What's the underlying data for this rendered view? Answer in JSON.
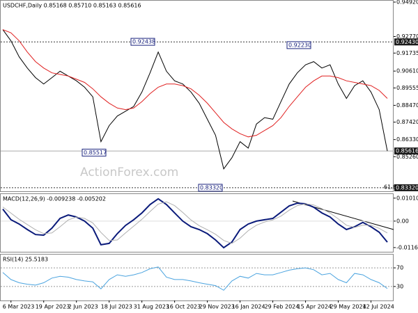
{
  "chart_data": [
    {
      "type": "line",
      "title": "USDCHF,Daily  0.85168 0.85710 0.85163 0.85616",
      "watermark": "ActionForex.com",
      "categories": [
        null,
        "6 Mar 2023",
        null,
        null,
        null,
        "19 Apr 2023",
        null,
        null,
        null,
        "2 Jun 2023",
        null,
        null,
        null,
        "18 Jul 2023",
        null,
        null,
        null,
        "31 Aug 2023",
        null,
        null,
        null,
        "16 Oct 2023",
        null,
        null,
        null,
        "29 Nov 2023",
        null,
        null,
        null,
        "16 Jan 2024",
        null,
        null,
        null,
        "29 Feb 2024",
        null,
        null,
        null,
        "15 Apr 2024",
        null,
        null,
        null,
        "29 May 2024",
        null,
        null,
        null,
        "12 Jul 2024",
        null,
        null
      ],
      "series": [
        {
          "color": "#000000",
          "width": 1,
          "values": [
            0.932,
            0.925,
            0.915,
            0.908,
            0.902,
            0.898,
            0.902,
            0.906,
            0.903,
            0.9,
            0.896,
            0.89,
            0.862,
            0.872,
            0.878,
            0.881,
            0.884,
            0.893,
            0.905,
            0.918,
            0.906,
            0.9,
            0.898,
            0.893,
            0.886,
            0.876,
            0.866,
            0.845,
            0.852,
            0.862,
            0.858,
            0.873,
            0.877,
            0.876,
            0.887,
            0.898,
            0.905,
            0.91,
            0.912,
            0.908,
            0.91,
            0.898,
            0.889,
            0.897,
            0.9,
            0.893,
            0.882,
            0.85616
          ]
        },
        {
          "color": "#e02020",
          "width": 1,
          "values": [
            0.932,
            0.93,
            0.925,
            0.918,
            0.912,
            0.908,
            0.905,
            0.904,
            0.903,
            0.901,
            0.899,
            0.895,
            0.89,
            0.886,
            0.883,
            0.882,
            0.883,
            0.887,
            0.892,
            0.896,
            0.898,
            0.898,
            0.897,
            0.895,
            0.891,
            0.886,
            0.88,
            0.874,
            0.87,
            0.867,
            0.865,
            0.866,
            0.869,
            0.872,
            0.877,
            0.884,
            0.89,
            0.896,
            0.9,
            0.903,
            0.903,
            0.902,
            0.9,
            0.899,
            0.898,
            0.897,
            0.894,
            0.889
          ]
        }
      ],
      "ylim": [
        0.831,
        0.9505
      ],
      "yticks": [
        {
          "value": 0.9492,
          "label": "0.94920"
        },
        {
          "value": 0.9277,
          "label": "0.92770"
        },
        {
          "value": 0.91735,
          "label": "0.91735"
        },
        {
          "value": 0.9061,
          "label": "0.90610"
        },
        {
          "value": 0.89555,
          "label": "0.89555"
        },
        {
          "value": 0.8847,
          "label": "0.88470"
        },
        {
          "value": 0.8742,
          "label": "0.87420"
        },
        {
          "value": 0.8633,
          "label": "0.86330"
        },
        {
          "value": 0.8526,
          "label": "0.85260"
        }
      ],
      "grid": false,
      "price_markers": [
        {
          "value": 0.9243,
          "label": "0.92430"
        },
        {
          "value": 0.85616,
          "label": "0.85616"
        },
        {
          "value": 0.8332,
          "label": "0.83320"
        }
      ],
      "annotations": [
        {
          "value": 0.92438,
          "label": "0.92438"
        },
        {
          "value": 0.85517,
          "label": "0.85517"
        },
        {
          "value": 0.8332,
          "label": "0.83320"
        },
        {
          "value": 0.9223,
          "label": "0.92230"
        }
      ],
      "fib_label": "61.8"
    },
    {
      "type": "line",
      "title": "MACD(12,26,9) -0.009238 -0.005202",
      "series": [
        {
          "color": "#0a1a7a",
          "width": 2,
          "values": [
            0.0053,
            0.0006,
            -0.0013,
            -0.0037,
            -0.0059,
            -0.0062,
            -0.0031,
            0.0012,
            0.0027,
            0.0018,
            0.0,
            -0.0031,
            -0.0104,
            -0.0098,
            -0.0055,
            -0.0019,
            0.0006,
            0.0036,
            0.0073,
            0.0098,
            0.0073,
            0.0036,
            0.0,
            -0.0025,
            -0.0037,
            -0.0055,
            -0.0083,
            -0.0117,
            -0.0092,
            -0.0037,
            -0.0013,
            0.0,
            0.0006,
            0.0012,
            0.0039,
            0.0067,
            0.0079,
            0.0076,
            0.0061,
            0.0036,
            0.0018,
            -0.0013,
            -0.0037,
            -0.0025,
            -0.0006,
            -0.0025,
            -0.0049,
            -0.009238
          ]
        },
        {
          "color": "#b0b0b0",
          "width": 1,
          "values": [
            0.0062,
            0.0035,
            0.0008,
            -0.0015,
            -0.0038,
            -0.0055,
            -0.0052,
            -0.0025,
            0.0005,
            0.0018,
            0.0012,
            -0.0008,
            -0.005,
            -0.0085,
            -0.0083,
            -0.0052,
            -0.0022,
            0.0008,
            0.0042,
            0.0075,
            0.0085,
            0.0068,
            0.0038,
            0.0005,
            -0.002,
            -0.0038,
            -0.0058,
            -0.0085,
            -0.0098,
            -0.0075,
            -0.0042,
            -0.0018,
            -0.0004,
            0.0005,
            0.0022,
            0.0048,
            0.0068,
            0.0076,
            0.0071,
            0.0055,
            0.0035,
            0.001,
            -0.0018,
            -0.0028,
            -0.0018,
            -0.0018,
            -0.0032,
            -0.005202
          ]
        }
      ],
      "ylim": [
        -0.0135,
        0.0122
      ],
      "yticks": [
        0.010101,
        {
          "value": 0,
          "label": "0.00"
        },
        -0.011645
      ]
    },
    {
      "type": "line",
      "title": "RSI(14) 25.5183",
      "series": [
        {
          "color": "#4aa3df",
          "width": 1,
          "values": [
            60,
            45,
            38,
            35,
            33,
            38,
            48,
            52,
            50,
            45,
            42,
            40,
            25,
            45,
            55,
            52,
            55,
            60,
            68,
            72,
            50,
            45,
            45,
            42,
            38,
            35,
            32,
            22,
            42,
            52,
            48,
            58,
            55,
            55,
            60,
            65,
            68,
            70,
            66,
            55,
            58,
            45,
            38,
            58,
            55,
            45,
            38,
            25.5183
          ]
        }
      ],
      "ylim": [
        0,
        100
      ],
      "yticks": [
        70,
        30
      ]
    }
  ]
}
